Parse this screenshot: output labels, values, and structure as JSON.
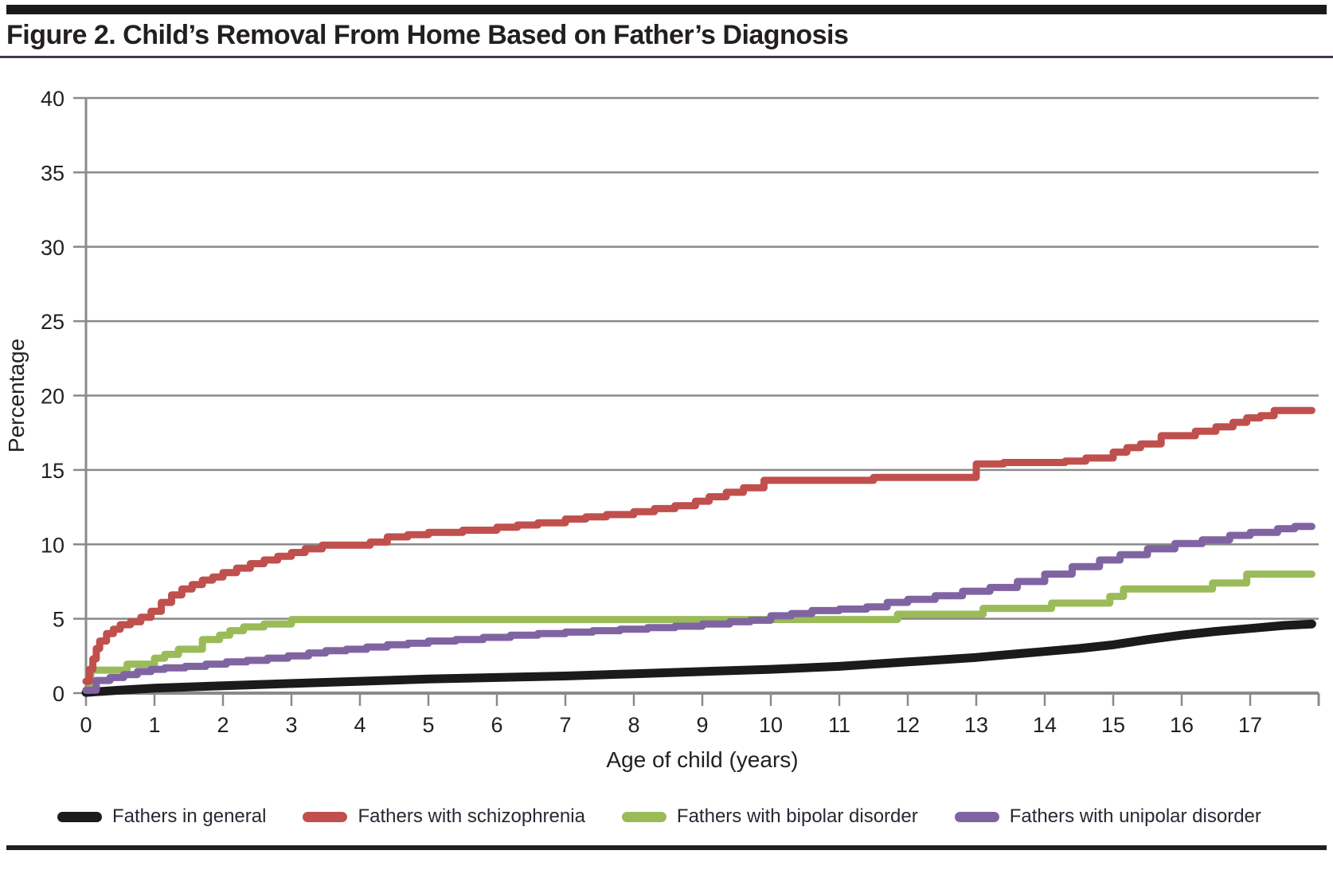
{
  "figure": {
    "title": "Figure 2. Child’s Removal From Home Based on Father’s Diagnosis",
    "accent_bar_color": "#1a1a1a",
    "title_rule_color": "#453258",
    "bottom_bar_color": "#231f20"
  },
  "chart_data": {
    "type": "line",
    "title": "Figure 2. Child’s Removal From Home Based on Father’s Diagnosis",
    "xlabel": "Age of child (years)",
    "ylabel": "Percentage",
    "xlim": [
      0,
      18
    ],
    "ylim": [
      0,
      40
    ],
    "x_ticks": [
      0,
      1,
      2,
      3,
      4,
      5,
      6,
      7,
      8,
      9,
      10,
      11,
      12,
      13,
      14,
      15,
      16,
      17
    ],
    "y_ticks": [
      0,
      5,
      10,
      15,
      20,
      25,
      30,
      35,
      40
    ],
    "grid": "horizontal",
    "legend_position": "bottom",
    "colors": {
      "grid": "#8a8a8a",
      "text": "#231f20"
    },
    "series": [
      {
        "id": "general",
        "name": "Fathers in general",
        "color": "#1b1b1b",
        "width": 11,
        "interpolation": "linear",
        "points": [
          [
            0,
            0.05
          ],
          [
            0.5,
            0.2
          ],
          [
            1,
            0.33
          ],
          [
            2,
            0.5
          ],
          [
            3,
            0.65
          ],
          [
            4,
            0.8
          ],
          [
            5,
            0.95
          ],
          [
            6,
            1.05
          ],
          [
            7,
            1.15
          ],
          [
            8,
            1.3
          ],
          [
            9,
            1.45
          ],
          [
            10,
            1.6
          ],
          [
            11,
            1.8
          ],
          [
            12,
            2.1
          ],
          [
            13,
            2.4
          ],
          [
            13.5,
            2.6
          ],
          [
            14,
            2.8
          ],
          [
            14.5,
            3.0
          ],
          [
            15,
            3.25
          ],
          [
            15.5,
            3.6
          ],
          [
            16,
            3.9
          ],
          [
            16.5,
            4.15
          ],
          [
            17,
            4.35
          ],
          [
            17.5,
            4.55
          ],
          [
            17.9,
            4.65
          ]
        ]
      },
      {
        "id": "bipolar",
        "name": "Fathers with bipolar disorder",
        "color": "#9bbb59",
        "width": 9,
        "interpolation": "step",
        "points": [
          [
            0,
            0.2
          ],
          [
            0.07,
            1.55
          ],
          [
            0.6,
            1.95
          ],
          [
            1.0,
            2.35
          ],
          [
            1.15,
            2.6
          ],
          [
            1.35,
            2.95
          ],
          [
            1.7,
            3.6
          ],
          [
            1.95,
            3.9
          ],
          [
            2.1,
            4.2
          ],
          [
            2.3,
            4.45
          ],
          [
            2.6,
            4.65
          ],
          [
            3.0,
            4.95
          ],
          [
            11.85,
            5.3
          ],
          [
            13.1,
            5.7
          ],
          [
            14.1,
            6.05
          ],
          [
            14.95,
            6.5
          ],
          [
            15.15,
            7.0
          ],
          [
            16.45,
            7.4
          ],
          [
            16.95,
            8.0
          ],
          [
            17.9,
            8.0
          ]
        ]
      },
      {
        "id": "unipolar",
        "name": "Fathers with unipolar disorder",
        "color": "#8064a2",
        "width": 9,
        "interpolation": "step",
        "points": [
          [
            0,
            0.2
          ],
          [
            0.15,
            0.85
          ],
          [
            0.35,
            1.05
          ],
          [
            0.55,
            1.25
          ],
          [
            0.75,
            1.45
          ],
          [
            0.95,
            1.6
          ],
          [
            1.15,
            1.7
          ],
          [
            1.45,
            1.8
          ],
          [
            1.75,
            1.95
          ],
          [
            2.05,
            2.1
          ],
          [
            2.35,
            2.2
          ],
          [
            2.65,
            2.35
          ],
          [
            2.95,
            2.5
          ],
          [
            3.25,
            2.7
          ],
          [
            3.5,
            2.85
          ],
          [
            3.8,
            2.95
          ],
          [
            4.1,
            3.1
          ],
          [
            4.4,
            3.25
          ],
          [
            4.7,
            3.35
          ],
          [
            5.0,
            3.5
          ],
          [
            5.4,
            3.6
          ],
          [
            5.8,
            3.75
          ],
          [
            6.2,
            3.9
          ],
          [
            6.6,
            4.0
          ],
          [
            7.0,
            4.1
          ],
          [
            7.4,
            4.2
          ],
          [
            7.8,
            4.3
          ],
          [
            8.2,
            4.4
          ],
          [
            8.6,
            4.5
          ],
          [
            9.0,
            4.65
          ],
          [
            9.4,
            4.8
          ],
          [
            9.7,
            4.9
          ],
          [
            10.0,
            5.2
          ],
          [
            10.3,
            5.35
          ],
          [
            10.6,
            5.55
          ],
          [
            11.0,
            5.65
          ],
          [
            11.4,
            5.8
          ],
          [
            11.7,
            6.1
          ],
          [
            12.0,
            6.3
          ],
          [
            12.4,
            6.55
          ],
          [
            12.8,
            6.85
          ],
          [
            13.2,
            7.1
          ],
          [
            13.6,
            7.5
          ],
          [
            14.0,
            8.0
          ],
          [
            14.4,
            8.5
          ],
          [
            14.8,
            8.95
          ],
          [
            15.1,
            9.3
          ],
          [
            15.5,
            9.7
          ],
          [
            15.9,
            10.05
          ],
          [
            16.3,
            10.3
          ],
          [
            16.7,
            10.6
          ],
          [
            17.0,
            10.8
          ],
          [
            17.4,
            11.05
          ],
          [
            17.65,
            11.2
          ],
          [
            17.9,
            11.2
          ]
        ]
      },
      {
        "id": "schizophrenia",
        "name": "Fathers with schizophrenia",
        "color": "#c0504d",
        "width": 9,
        "interpolation": "step",
        "points": [
          [
            0,
            0.8
          ],
          [
            0.05,
            1.6
          ],
          [
            0.1,
            2.3
          ],
          [
            0.15,
            3.0
          ],
          [
            0.2,
            3.5
          ],
          [
            0.3,
            4.0
          ],
          [
            0.4,
            4.3
          ],
          [
            0.5,
            4.6
          ],
          [
            0.65,
            4.8
          ],
          [
            0.8,
            5.1
          ],
          [
            0.95,
            5.5
          ],
          [
            1.1,
            6.1
          ],
          [
            1.25,
            6.6
          ],
          [
            1.4,
            7.0
          ],
          [
            1.55,
            7.3
          ],
          [
            1.7,
            7.6
          ],
          [
            1.85,
            7.8
          ],
          [
            2.0,
            8.1
          ],
          [
            2.2,
            8.4
          ],
          [
            2.4,
            8.7
          ],
          [
            2.6,
            8.95
          ],
          [
            2.8,
            9.2
          ],
          [
            3.0,
            9.45
          ],
          [
            3.2,
            9.7
          ],
          [
            3.45,
            9.95
          ],
          [
            4.15,
            10.15
          ],
          [
            4.4,
            10.5
          ],
          [
            4.7,
            10.65
          ],
          [
            5.0,
            10.8
          ],
          [
            5.5,
            10.95
          ],
          [
            6.0,
            11.15
          ],
          [
            6.3,
            11.3
          ],
          [
            6.6,
            11.45
          ],
          [
            7.0,
            11.7
          ],
          [
            7.3,
            11.85
          ],
          [
            7.6,
            12.0
          ],
          [
            8.0,
            12.2
          ],
          [
            8.3,
            12.4
          ],
          [
            8.6,
            12.6
          ],
          [
            8.9,
            12.9
          ],
          [
            9.1,
            13.2
          ],
          [
            9.35,
            13.5
          ],
          [
            9.6,
            13.8
          ],
          [
            9.9,
            14.3
          ],
          [
            11.5,
            14.5
          ],
          [
            13.0,
            15.4
          ],
          [
            13.4,
            15.5
          ],
          [
            14.3,
            15.6
          ],
          [
            14.6,
            15.8
          ],
          [
            15.0,
            16.2
          ],
          [
            15.2,
            16.5
          ],
          [
            15.4,
            16.75
          ],
          [
            15.7,
            17.3
          ],
          [
            16.2,
            17.6
          ],
          [
            16.5,
            17.9
          ],
          [
            16.75,
            18.2
          ],
          [
            16.95,
            18.5
          ],
          [
            17.15,
            18.65
          ],
          [
            17.35,
            19.0
          ],
          [
            17.9,
            19.0
          ]
        ]
      }
    ],
    "legend_order": [
      0,
      3,
      1,
      2
    ]
  }
}
